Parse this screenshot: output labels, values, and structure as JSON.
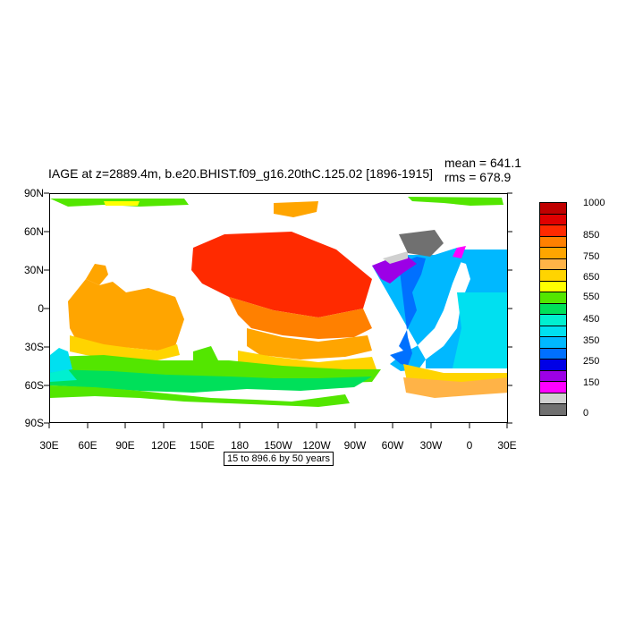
{
  "title": "IAGE at z=2889.4m, b.e20.BHIST.f09_g16.20thC.125.02 [1896-1915]",
  "stats": {
    "mean": "mean = 641.1",
    "rms": "rms = 678.9"
  },
  "footnote": "15 to 896.6 by 50 years",
  "lat_labels": [
    "90N",
    "60N",
    "30N",
    "0",
    "30S",
    "60S",
    "90S"
  ],
  "lon_labels": [
    "30E",
    "60E",
    "90E",
    "120E",
    "150E",
    "180",
    "150W",
    "120W",
    "90W",
    "60W",
    "30W",
    "0",
    "30E"
  ],
  "colorbar": {
    "colors": [
      "#bf0000",
      "#e00000",
      "#ff2a00",
      "#ff8000",
      "#ffa500",
      "#ffb347",
      "#ffd400",
      "#ffff00",
      "#53e600",
      "#00e05a",
      "#00f0d0",
      "#00e0f0",
      "#00b8ff",
      "#0070ff",
      "#0000e6",
      "#9c00e6",
      "#ff00ff",
      "#d0d0d0",
      "#707070"
    ],
    "labels": [
      "1000",
      "850",
      "750",
      "650",
      "550",
      "450",
      "350",
      "250",
      "150",
      "0"
    ]
  },
  "chart_data": {
    "type": "map",
    "variable": "IAGE",
    "depth": "z=2889.4m",
    "case": "b.e20.BHIST.f09_g16.20thC.125.02",
    "period": "1896-1915",
    "mean": 641.1,
    "rms": 678.9,
    "contour_min": 15,
    "contour_max": 896.6,
    "contour_interval": 50,
    "units": "years",
    "lon_range": [
      "30E",
      "30E"
    ],
    "lat_range": [
      "90S",
      "90N"
    ],
    "colorbar_labels": [
      1000,
      850,
      750,
      650,
      550,
      450,
      350,
      250,
      150,
      0
    ]
  }
}
